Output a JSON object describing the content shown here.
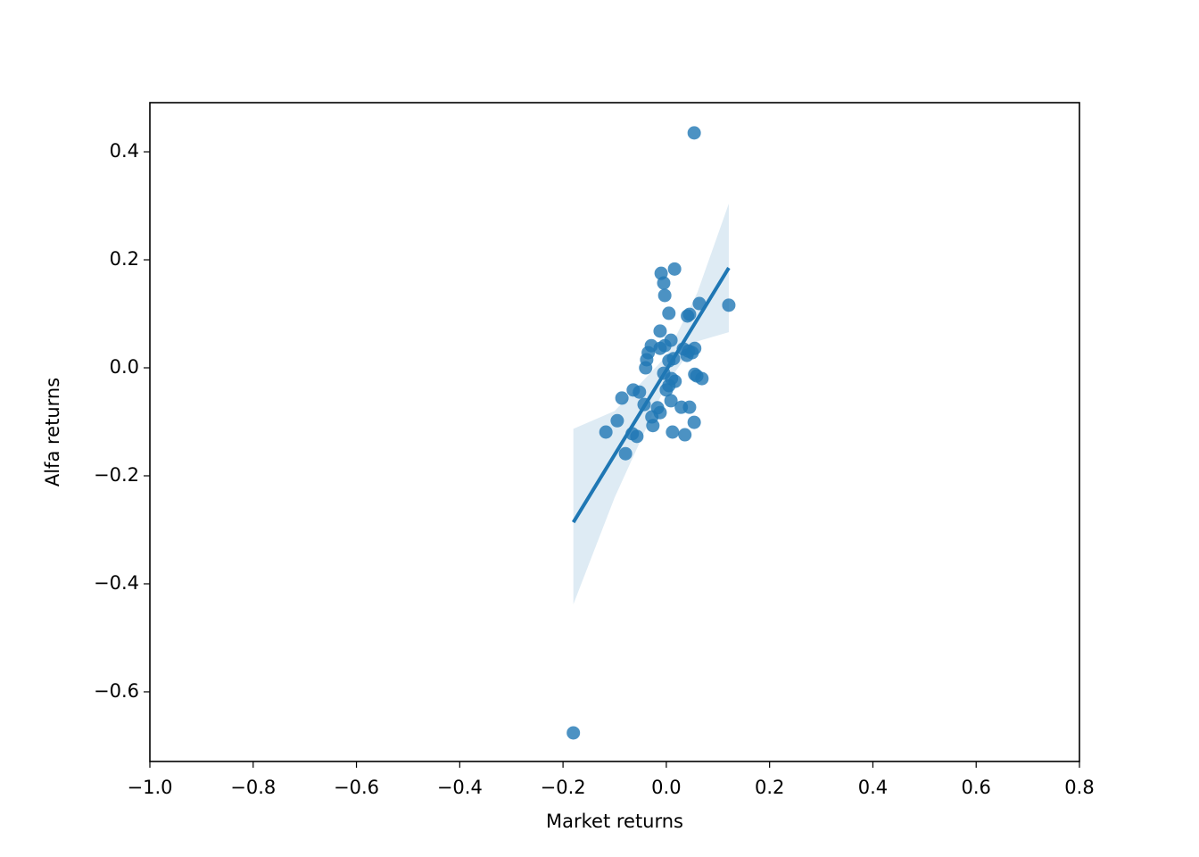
{
  "chart_data": {
    "type": "regplot",
    "x_label": "Market returns",
    "y_label": "Alfa returns",
    "xlim": [
      -1.0,
      0.8
    ],
    "ylim": [
      -0.729,
      0.491
    ],
    "xticks": [
      {
        "value": -1.0,
        "label": "−1.0"
      },
      {
        "value": -0.8,
        "label": "−0.8"
      },
      {
        "value": -0.6,
        "label": "−0.6"
      },
      {
        "value": -0.4,
        "label": "−0.4"
      },
      {
        "value": -0.2,
        "label": "−0.2"
      },
      {
        "value": 0.0,
        "label": "0.0"
      },
      {
        "value": 0.2,
        "label": "0.2"
      },
      {
        "value": 0.4,
        "label": "0.4"
      },
      {
        "value": 0.6,
        "label": "0.6"
      },
      {
        "value": 0.8,
        "label": "0.8"
      }
    ],
    "yticks": [
      {
        "value": -0.6,
        "label": "−0.6"
      },
      {
        "value": -0.4,
        "label": "−0.4"
      },
      {
        "value": -0.2,
        "label": "−0.2"
      },
      {
        "value": 0.0,
        "label": "0.0"
      },
      {
        "value": 0.2,
        "label": "0.2"
      },
      {
        "value": 0.4,
        "label": "0.4"
      }
    ],
    "color": "#1f77b4",
    "x": [
      0.054,
      -0.18,
      0.016,
      -0.01,
      -0.005,
      -0.003,
      0.005,
      0.064,
      0.041,
      0.045,
      0.121,
      -0.012,
      0.009,
      -0.029,
      -0.003,
      -0.035,
      -0.012,
      0.055,
      0.043,
      0.033,
      0.04,
      0.05,
      -0.038,
      0.005,
      0.014,
      -0.04,
      -0.005,
      0.055,
      0.059,
      0.069,
      0.01,
      0.017,
      0.005,
      0.0,
      -0.064,
      -0.052,
      -0.086,
      0.009,
      -0.043,
      -0.017,
      0.029,
      0.045,
      -0.012,
      -0.028,
      -0.095,
      0.054,
      -0.026,
      -0.117,
      0.012,
      -0.066,
      -0.057,
      0.036,
      -0.079
    ],
    "y": [
      0.435,
      -0.676,
      0.183,
      0.175,
      0.157,
      0.134,
      0.101,
      0.119,
      0.096,
      0.099,
      0.116,
      0.068,
      0.051,
      0.041,
      0.041,
      0.028,
      0.036,
      0.036,
      0.031,
      0.035,
      0.023,
      0.028,
      0.015,
      0.013,
      0.017,
      0.0,
      -0.01,
      -0.012,
      -0.015,
      -0.02,
      -0.02,
      -0.025,
      -0.033,
      -0.041,
      -0.041,
      -0.045,
      -0.056,
      -0.061,
      -0.068,
      -0.074,
      -0.073,
      -0.073,
      -0.083,
      -0.091,
      -0.098,
      -0.101,
      -0.107,
      -0.119,
      -0.119,
      -0.122,
      -0.127,
      -0.124,
      -0.159
    ],
    "fit": {
      "x": [
        -0.18,
        0.121
      ],
      "y": [
        -0.286,
        0.185
      ]
    },
    "ci": {
      "x": [
        -0.18,
        -0.1,
        0.0,
        0.06,
        0.121
      ],
      "lower": [
        -0.438,
        -0.24,
        -0.03,
        0.049,
        0.066
      ],
      "upper": [
        -0.113,
        -0.08,
        0.022,
        0.139,
        0.304
      ]
    }
  }
}
